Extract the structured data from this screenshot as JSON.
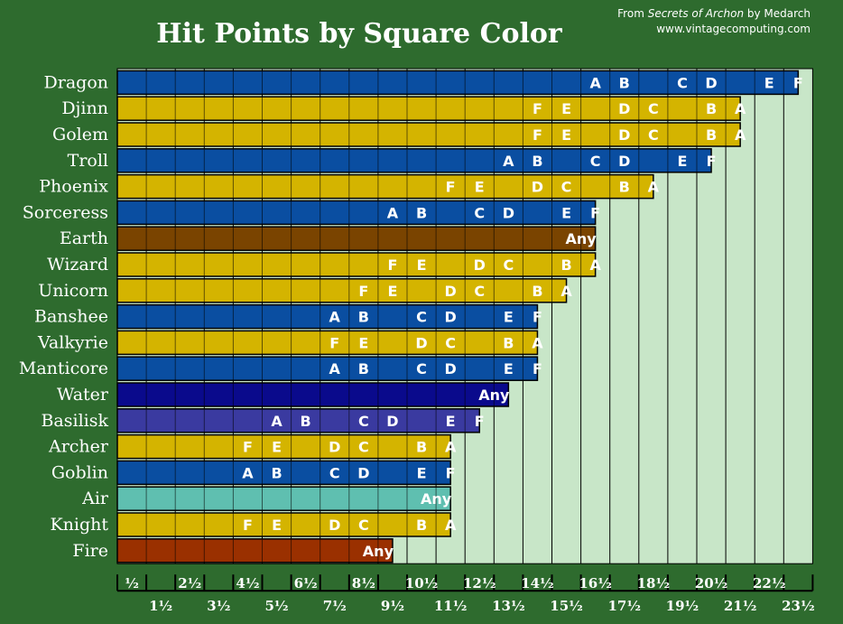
{
  "credit": {
    "from_prefix": "From ",
    "source_title": "Secrets of Archon",
    "by_text": " by Medarch",
    "site": "www.vintagecomputing.com"
  },
  "colors": {
    "background": "#2e6b2e",
    "plot_area": "#c8e6c8",
    "blue": "#0a4ea1",
    "yellow": "#d4b400",
    "earth": "#7a4400",
    "water": "#0a0a8c",
    "basilisk": "#3a3aa0",
    "air": "#5fbfb0",
    "fire": "#9a3000"
  },
  "chart_data": {
    "type": "bar",
    "orientation": "horizontal",
    "title": "Hit Points by Square Color",
    "xlabel": "",
    "ylabel": "",
    "xlim": [
      0,
      24
    ],
    "grid": true,
    "x_ticks_top_row": [
      "½",
      "2½",
      "4½",
      "6½",
      "8½",
      "10½",
      "12½",
      "14½",
      "16½",
      "18½",
      "20½",
      "22½"
    ],
    "x_ticks_bottom_row": [
      "1½",
      "3½",
      "5½",
      "7½",
      "9½",
      "11½",
      "13½",
      "15½",
      "17½",
      "19½",
      "21½",
      "23½"
    ],
    "categories": [
      "Dragon",
      "Djinn",
      "Golem",
      "Troll",
      "Phoenix",
      "Sorceress",
      "Earth",
      "Wizard",
      "Unicorn",
      "Banshee",
      "Valkyrie",
      "Manticore",
      "Water",
      "Basilisk",
      "Archer",
      "Goblin",
      "Air",
      "Knight",
      "Fire"
    ],
    "bars": [
      {
        "name": "Dragon",
        "value": 23.5,
        "color": "blue",
        "labels": [
          {
            "t": "A",
            "v": 16
          },
          {
            "t": "B",
            "v": 17
          },
          {
            "t": "C",
            "v": 19
          },
          {
            "t": "D",
            "v": 20
          },
          {
            "t": "E",
            "v": 22
          },
          {
            "t": "F",
            "v": 23
          }
        ]
      },
      {
        "name": "Djinn",
        "value": 21.5,
        "color": "yellow",
        "labels": [
          {
            "t": "F",
            "v": 14
          },
          {
            "t": "E",
            "v": 15
          },
          {
            "t": "D",
            "v": 17
          },
          {
            "t": "C",
            "v": 18
          },
          {
            "t": "B",
            "v": 20
          },
          {
            "t": "A",
            "v": 21
          }
        ]
      },
      {
        "name": "Golem",
        "value": 21.5,
        "color": "yellow",
        "labels": [
          {
            "t": "F",
            "v": 14
          },
          {
            "t": "E",
            "v": 15
          },
          {
            "t": "D",
            "v": 17
          },
          {
            "t": "C",
            "v": 18
          },
          {
            "t": "B",
            "v": 20
          },
          {
            "t": "A",
            "v": 21
          }
        ]
      },
      {
        "name": "Troll",
        "value": 20.5,
        "color": "blue",
        "labels": [
          {
            "t": "A",
            "v": 13
          },
          {
            "t": "B",
            "v": 14
          },
          {
            "t": "C",
            "v": 16
          },
          {
            "t": "D",
            "v": 17
          },
          {
            "t": "E",
            "v": 19
          },
          {
            "t": "F",
            "v": 20
          }
        ]
      },
      {
        "name": "Phoenix",
        "value": 18.5,
        "color": "yellow",
        "labels": [
          {
            "t": "F",
            "v": 11
          },
          {
            "t": "E",
            "v": 12
          },
          {
            "t": "D",
            "v": 14
          },
          {
            "t": "C",
            "v": 15
          },
          {
            "t": "B",
            "v": 17
          },
          {
            "t": "A",
            "v": 18
          }
        ]
      },
      {
        "name": "Sorceress",
        "value": 16.5,
        "color": "blue",
        "labels": [
          {
            "t": "A",
            "v": 9
          },
          {
            "t": "B",
            "v": 10
          },
          {
            "t": "C",
            "v": 12
          },
          {
            "t": "D",
            "v": 13
          },
          {
            "t": "E",
            "v": 15
          },
          {
            "t": "F",
            "v": 16
          }
        ]
      },
      {
        "name": "Earth",
        "value": 16.5,
        "color": "earth",
        "labels": [
          {
            "t": "Any",
            "v": 15.5
          }
        ]
      },
      {
        "name": "Wizard",
        "value": 16.5,
        "color": "yellow",
        "labels": [
          {
            "t": "F",
            "v": 9
          },
          {
            "t": "E",
            "v": 10
          },
          {
            "t": "D",
            "v": 12
          },
          {
            "t": "C",
            "v": 13
          },
          {
            "t": "B",
            "v": 15
          },
          {
            "t": "A",
            "v": 16
          }
        ]
      },
      {
        "name": "Unicorn",
        "value": 15.5,
        "color": "yellow",
        "labels": [
          {
            "t": "F",
            "v": 8
          },
          {
            "t": "E",
            "v": 9
          },
          {
            "t": "D",
            "v": 11
          },
          {
            "t": "C",
            "v": 12
          },
          {
            "t": "B",
            "v": 14
          },
          {
            "t": "A",
            "v": 15
          }
        ]
      },
      {
        "name": "Banshee",
        "value": 14.5,
        "color": "blue",
        "labels": [
          {
            "t": "A",
            "v": 7
          },
          {
            "t": "B",
            "v": 8
          },
          {
            "t": "C",
            "v": 10
          },
          {
            "t": "D",
            "v": 11
          },
          {
            "t": "E",
            "v": 13
          },
          {
            "t": "F",
            "v": 14
          }
        ]
      },
      {
        "name": "Valkyrie",
        "value": 14.5,
        "color": "yellow",
        "labels": [
          {
            "t": "F",
            "v": 7
          },
          {
            "t": "E",
            "v": 8
          },
          {
            "t": "D",
            "v": 10
          },
          {
            "t": "C",
            "v": 11
          },
          {
            "t": "B",
            "v": 13
          },
          {
            "t": "A",
            "v": 14
          }
        ]
      },
      {
        "name": "Manticore",
        "value": 14.5,
        "color": "blue",
        "labels": [
          {
            "t": "A",
            "v": 7
          },
          {
            "t": "B",
            "v": 8
          },
          {
            "t": "C",
            "v": 10
          },
          {
            "t": "D",
            "v": 11
          },
          {
            "t": "E",
            "v": 13
          },
          {
            "t": "F",
            "v": 14
          }
        ]
      },
      {
        "name": "Water",
        "value": 13.5,
        "color": "water",
        "labels": [
          {
            "t": "Any",
            "v": 12.5
          }
        ]
      },
      {
        "name": "Basilisk",
        "value": 12.5,
        "color": "basilisk",
        "labels": [
          {
            "t": "A",
            "v": 5
          },
          {
            "t": "B",
            "v": 6
          },
          {
            "t": "C",
            "v": 8
          },
          {
            "t": "D",
            "v": 9
          },
          {
            "t": "E",
            "v": 11
          },
          {
            "t": "F",
            "v": 12
          }
        ]
      },
      {
        "name": "Archer",
        "value": 11.5,
        "color": "yellow",
        "labels": [
          {
            "t": "F",
            "v": 4
          },
          {
            "t": "E",
            "v": 5
          },
          {
            "t": "D",
            "v": 7
          },
          {
            "t": "C",
            "v": 8
          },
          {
            "t": "B",
            "v": 10
          },
          {
            "t": "A",
            "v": 11
          }
        ]
      },
      {
        "name": "Goblin",
        "value": 11.5,
        "color": "blue",
        "labels": [
          {
            "t": "A",
            "v": 4
          },
          {
            "t": "B",
            "v": 5
          },
          {
            "t": "C",
            "v": 7
          },
          {
            "t": "D",
            "v": 8
          },
          {
            "t": "E",
            "v": 10
          },
          {
            "t": "F",
            "v": 11
          }
        ]
      },
      {
        "name": "Air",
        "value": 11.5,
        "color": "air",
        "labels": [
          {
            "t": "Any",
            "v": 10.5
          }
        ]
      },
      {
        "name": "Knight",
        "value": 11.5,
        "color": "yellow",
        "labels": [
          {
            "t": "F",
            "v": 4
          },
          {
            "t": "E",
            "v": 5
          },
          {
            "t": "D",
            "v": 7
          },
          {
            "t": "C",
            "v": 8
          },
          {
            "t": "B",
            "v": 10
          },
          {
            "t": "A",
            "v": 11
          }
        ]
      },
      {
        "name": "Fire",
        "value": 9.5,
        "color": "fire",
        "labels": [
          {
            "t": "Any",
            "v": 8.5
          }
        ]
      }
    ]
  }
}
